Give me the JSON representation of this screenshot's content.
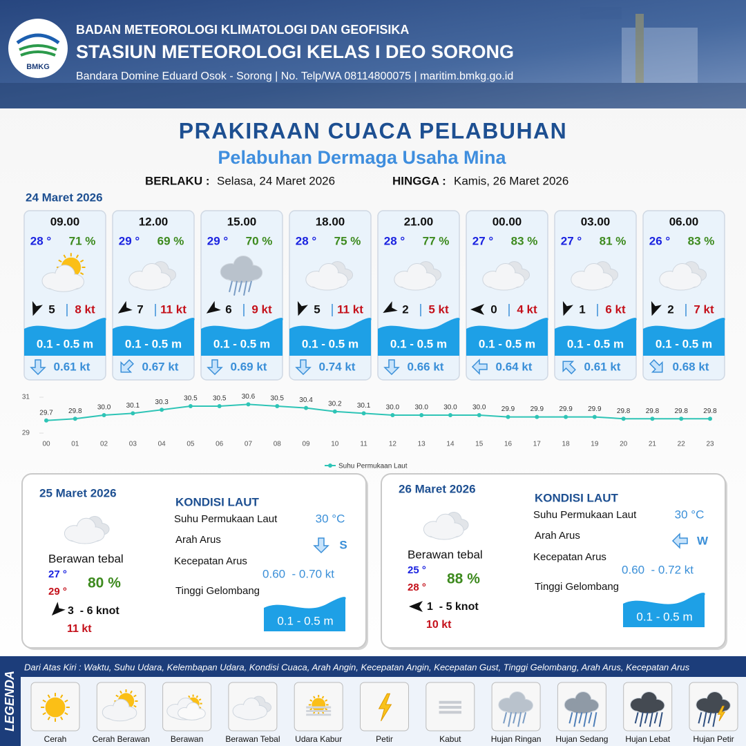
{
  "header": {
    "logo_text": "BMKG",
    "agency": "BADAN METEOROLOGI KLIMATOLOGI DAN GEOFISIKA",
    "station": "STASIUN METEOROLOGI KELAS I DEO SORONG",
    "contact": "Bandara Domine Eduard Osok - Sorong | No. Telp/WA 08114800075 | maritim.bmkg.go.id"
  },
  "title": "PRAKIRAAN CUACA PELABUHAN",
  "subtitle": "Pelabuhan Dermaga Usaha Mina",
  "validity": {
    "from_label": "BERLAKU :",
    "from": "Selasa, 24 Maret 2026",
    "to_label": "HINGGA :",
    "to": "Kamis, 26 Maret 2026"
  },
  "today": {
    "date": "24 Maret 2026",
    "slots": [
      {
        "time": "09.00",
        "temp": "28 °",
        "rh": "71 %",
        "wind": "5",
        "gust": "8 kt",
        "wave": "0.1 - 0.5 m",
        "current": "0.61 kt"
      },
      {
        "time": "12.00",
        "temp": "29 °",
        "rh": "69 %",
        "wind": "7",
        "gust": "11 kt",
        "wave": "0.1 - 0.5 m",
        "current": "0.67 kt"
      },
      {
        "time": "15.00",
        "temp": "29 °",
        "rh": "70 %",
        "wind": "6",
        "gust": "9 kt",
        "wave": "0.1 - 0.5 m",
        "current": "0.69 kt"
      },
      {
        "time": "18.00",
        "temp": "28 °",
        "rh": "75 %",
        "wind": "5",
        "gust": "11 kt",
        "wave": "0.1 - 0.5 m",
        "current": "0.74 kt"
      },
      {
        "time": "21.00",
        "temp": "28 °",
        "rh": "77 %",
        "wind": "2",
        "gust": "5 kt",
        "wave": "0.1 - 0.5 m",
        "current": "0.66 kt"
      },
      {
        "time": "00.00",
        "temp": "27 °",
        "rh": "83 %",
        "wind": "0",
        "gust": "4 kt",
        "wave": "0.1 - 0.5 m",
        "current": "0.64 kt"
      },
      {
        "time": "03.00",
        "temp": "27 °",
        "rh": "81 %",
        "wind": "1",
        "gust": "6 kt",
        "wave": "0.1 - 0.5 m",
        "current": "0.61 kt"
      },
      {
        "time": "06.00",
        "temp": "26 °",
        "rh": "83 %",
        "wind": "2",
        "gust": "7 kt",
        "wave": "0.1 - 0.5 m",
        "current": "0.68 kt"
      }
    ]
  },
  "chart_data": {
    "type": "line",
    "categories": [
      "00",
      "01",
      "02",
      "03",
      "04",
      "05",
      "06",
      "07",
      "08",
      "09",
      "10",
      "11",
      "12",
      "13",
      "14",
      "15",
      "16",
      "17",
      "18",
      "19",
      "20",
      "21",
      "22",
      "23"
    ],
    "series": [
      {
        "name": "Suhu Permukaan Laut",
        "color": "#2ec4b6",
        "values": [
          29.7,
          29.8,
          30.0,
          30.1,
          30.3,
          30.5,
          30.5,
          30.6,
          30.5,
          30.4,
          30.2,
          30.1,
          30.0,
          30.0,
          30.0,
          30.0,
          29.9,
          29.9,
          29.9,
          29.9,
          29.8,
          29.8,
          29.8,
          29.8
        ],
        "value_labels": [
          "29.7",
          "29.8",
          "30.0",
          "30.1",
          "30.3",
          "30.5",
          "30.5",
          "30.6",
          "30.5",
          "30.4",
          "30.2",
          "30.1",
          "30.0",
          "30.0",
          "30.0",
          "30.0",
          "29.9",
          "29.9",
          "29.9",
          "29.9",
          "29.8",
          "29.8",
          "29.8",
          "29.8"
        ]
      }
    ],
    "ylim": [
      29,
      31
    ],
    "yticks": [
      29,
      31
    ],
    "legend": "bottom"
  },
  "days": [
    {
      "date": "25 Maret 2026",
      "condition": "Berawan tebal",
      "tmin": "27 °",
      "tmax": "29 °",
      "rh": "80 %",
      "wind": "3  - 6 knot",
      "gust": "11 kt",
      "sea_title": "KONDISI LAUT",
      "sst_label": "Suhu Permukaan Laut",
      "sst": "30 °C",
      "dir_label": "Arah Arus",
      "dir": "S",
      "speed_label": "Kecepatan Arus",
      "speed": "0.60  - 0.70 kt",
      "wave_label": "Tinggi Gelombang",
      "wave": "0.1 - 0.5 m"
    },
    {
      "date": "26 Maret 2026",
      "condition": "Berawan tebal",
      "tmin": "25 °",
      "tmax": "28 °",
      "rh": "88 %",
      "wind": "1  - 5 knot",
      "gust": "10 kt",
      "sea_title": "KONDISI LAUT",
      "sst_label": "Suhu Permukaan Laut",
      "sst": "30 °C",
      "dir_label": "Arah Arus",
      "dir": "W",
      "speed_label": "Kecepatan Arus",
      "speed": "0.60  - 0.72 kt",
      "wave_label": "Tinggi Gelombang",
      "wave": "0.1 - 0.5 m"
    }
  ],
  "legend": {
    "title": "LEGENDA",
    "description": "Dari Atas Kiri : Waktu, Suhu Udara, Kelembapan Udara, Kondisi Cuaca, Arah Angin, Kecepatan Angin, Kecepatan Gust, Tinggi Gelombang, Arah Arus, Kecepatan Arus",
    "items": [
      "Cerah",
      "Cerah Berawan",
      "Berawan",
      "Berawan Tebal",
      "Udara Kabur",
      "Petir",
      "Kabut",
      "Hujan Ringan",
      "Hujan Sedang",
      "Hujan Lebat",
      "Hujan Petir"
    ]
  }
}
